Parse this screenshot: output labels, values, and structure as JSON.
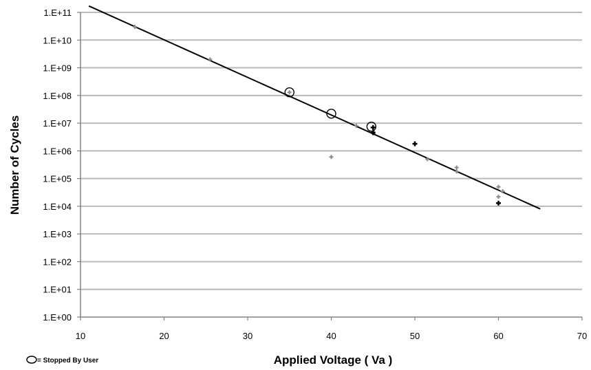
{
  "chart_data": {
    "type": "scatter",
    "xlabel": "Applied Voltage ( Va )",
    "ylabel": "Number of Cycles",
    "xlim": [
      10,
      70
    ],
    "ylim_log10": [
      0,
      11
    ],
    "y_scale": "log",
    "x_ticks": [
      "10",
      "20",
      "30",
      "40",
      "50",
      "60",
      "70"
    ],
    "y_ticks": [
      "1.E+00",
      "1.E+01",
      "1.E+02",
      "1.E+03",
      "1.E+04",
      "1.E+05",
      "1.E+06",
      "1.E+07",
      "1.E+08",
      "1.E+09",
      "1.E+10",
      "1.E+11"
    ],
    "grid": true,
    "legend": {
      "label": "= Stopped By User",
      "position": "bottom-left"
    },
    "series": [
      {
        "kind": "points-gray",
        "points": [
          [
            16.5,
            30000000000
          ],
          [
            25.5,
            2000000000
          ],
          [
            35,
            130000000
          ],
          [
            40,
            600000
          ],
          [
            43,
            8000000
          ],
          [
            45,
            5000000
          ],
          [
            51.5,
            500000
          ],
          [
            55,
            250000
          ],
          [
            55,
            180000
          ],
          [
            60,
            50000
          ],
          [
            60,
            22000
          ],
          [
            60.5,
            35000
          ]
        ]
      },
      {
        "kind": "points-black",
        "points": [
          [
            45,
            7000000
          ],
          [
            45,
            4500000
          ],
          [
            50,
            1800000
          ],
          [
            60,
            13000
          ]
        ]
      },
      {
        "kind": "stopped-by-user",
        "points": [
          [
            35,
            130000000
          ],
          [
            40,
            22000000
          ],
          [
            44.8,
            7500000
          ]
        ]
      },
      {
        "kind": "trend-line",
        "points": [
          [
            11,
            170000000000
          ],
          [
            65,
            8000
          ]
        ]
      }
    ]
  }
}
